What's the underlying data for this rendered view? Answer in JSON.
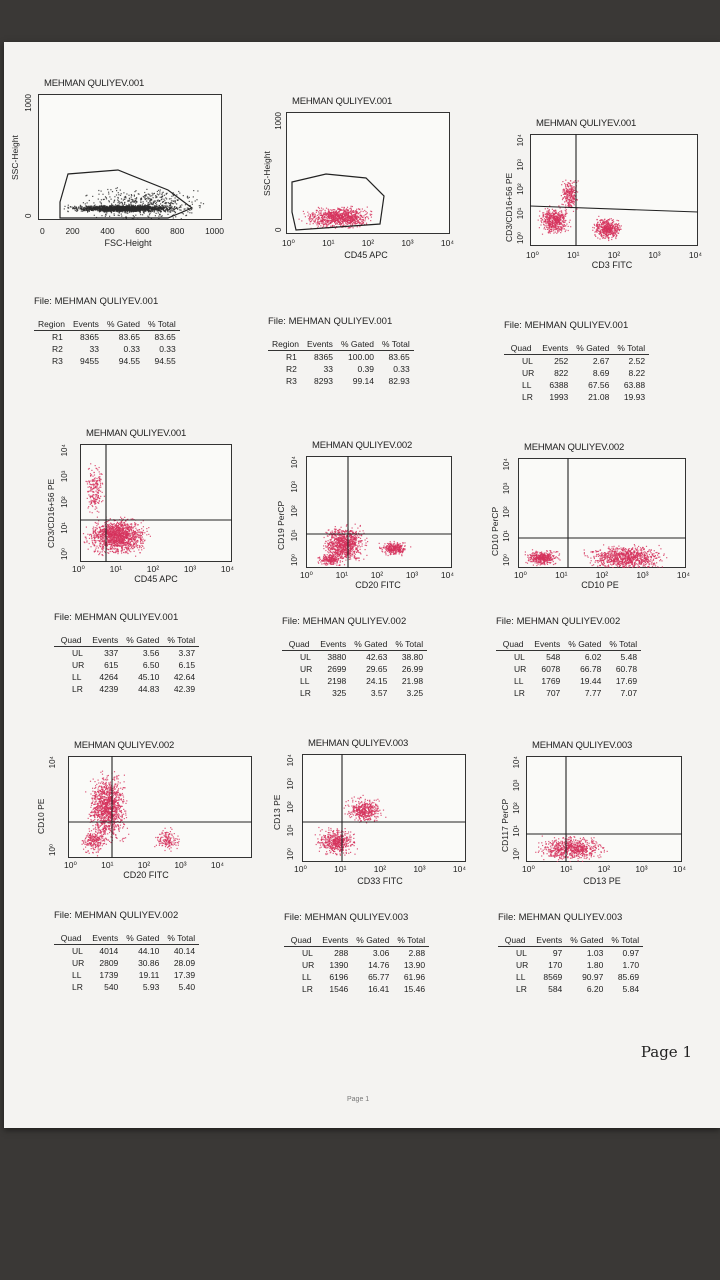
{
  "colors": {
    "dot": "#d6325c",
    "dark": "#2a2a2a",
    "paper": "#f4f3f1"
  },
  "plots": [
    {
      "title": "MEHMAN QULIYEV.001",
      "ylabel": "SSC-Height",
      "xlabel": "FSC-Height",
      "xticks": [
        "0",
        "200",
        "400",
        "600",
        "800",
        "1000"
      ],
      "yticks": [
        "0",
        "",
        "",
        "",
        "",
        "1000"
      ],
      "dots": "dark"
    },
    {
      "title": "MEHMAN QULIYEV.001",
      "ylabel": "SSC-Height",
      "xlabel": "CD45 APC",
      "xticks": [
        "10⁰",
        "10¹",
        "10²",
        "10³",
        "10⁴"
      ],
      "yticks": [
        "0",
        "",
        "",
        "",
        "",
        "1000"
      ],
      "dots": "red"
    },
    {
      "title": "MEHMAN QULIYEV.001",
      "ylabel": "CD3/CD16+56 PE",
      "xlabel": "CD3 FITC",
      "xticks": [
        "10⁰",
        "10¹",
        "10²",
        "10³",
        "10⁴"
      ],
      "yticks": [
        "10⁰",
        "10¹",
        "10²",
        "10³",
        "10⁴"
      ],
      "dots": "red"
    },
    {
      "title": "MEHMAN QULIYEV.001",
      "ylabel": "CD3/CD16+56 PE",
      "xlabel": "CD45 APC",
      "xticks": [
        "10⁰",
        "10¹",
        "10²",
        "10³",
        "10⁴"
      ],
      "yticks": [
        "10⁰",
        "10¹",
        "10²",
        "10³",
        "10⁴"
      ],
      "dots": "red"
    },
    {
      "title": "MEHMAN QULIYEV.002",
      "ylabel": "CD19 PerCP",
      "xlabel": "CD20 FITC",
      "xticks": [
        "10⁰",
        "10¹",
        "10²",
        "10³",
        "10⁴"
      ],
      "yticks": [
        "10⁰",
        "10¹",
        "10²",
        "10³",
        "10⁴"
      ],
      "dots": "red"
    },
    {
      "title": "MEHMAN QULIYEV.002",
      "ylabel": "CD10 PerCP",
      "xlabel": "CD10 PE",
      "xticks": [
        "10⁰",
        "10¹",
        "10²",
        "10³",
        "10⁴"
      ],
      "yticks": [
        "10⁰",
        "10¹",
        "10²",
        "10³",
        "10⁴"
      ],
      "dots": "red"
    },
    {
      "title": "MEHMAN QULIYEV.002",
      "ylabel": "CD10 PE",
      "xlabel": "CD20 FITC",
      "xticks": [
        "10⁰",
        "10¹",
        "10²",
        "10³",
        "10⁴"
      ],
      "yticks": [
        "10⁰",
        "",
        "",
        "",
        "10⁴"
      ],
      "dots": "red"
    },
    {
      "title": "MEHMAN QULIYEV.003",
      "ylabel": "CD13 PE",
      "xlabel": "CD33 FITC",
      "xticks": [
        "10⁰",
        "10¹",
        "10²",
        "10³",
        "10⁴"
      ],
      "yticks": [
        "10⁰",
        "10¹",
        "10²",
        "10³",
        "10⁴"
      ],
      "dots": "red"
    },
    {
      "title": "MEHMAN QULIYEV.003",
      "ylabel": "CD117 PerCP",
      "xlabel": "CD13 PE",
      "xticks": [
        "10⁰",
        "10¹",
        "10²",
        "10³",
        "10⁴"
      ],
      "yticks": [
        "10⁰",
        "10¹",
        "10²",
        "10³",
        "10⁴"
      ],
      "dots": "red"
    }
  ],
  "stats": [
    {
      "file": "File: MEHMAN QULIYEV.001",
      "headers": [
        "Region",
        "Events",
        "% Gated",
        "% Total"
      ],
      "rows": [
        [
          "R1",
          "8365",
          "83.65",
          "83.65"
        ],
        [
          "R2",
          "33",
          "0.33",
          "0.33"
        ],
        [
          "R3",
          "9455",
          "94.55",
          "94.55"
        ]
      ]
    },
    {
      "file": "File: MEHMAN QULIYEV.001",
      "headers": [
        "Region",
        "Events",
        "% Gated",
        "% Total"
      ],
      "rows": [
        [
          "R1",
          "8365",
          "100.00",
          "83.65"
        ],
        [
          "R2",
          "33",
          "0.39",
          "0.33"
        ],
        [
          "R3",
          "8293",
          "99.14",
          "82.93"
        ]
      ]
    },
    {
      "file": "File: MEHMAN QULIYEV.001",
      "headers": [
        "Quad",
        "Events",
        "% Gated",
        "% Total"
      ],
      "rows": [
        [
          "UL",
          "252",
          "2.67",
          "2.52"
        ],
        [
          "UR",
          "822",
          "8.69",
          "8.22"
        ],
        [
          "LL",
          "6388",
          "67.56",
          "63.88"
        ],
        [
          "LR",
          "1993",
          "21.08",
          "19.93"
        ]
      ]
    },
    {
      "file": "File: MEHMAN QULIYEV.001",
      "headers": [
        "Quad",
        "Events",
        "% Gated",
        "% Total"
      ],
      "rows": [
        [
          "UL",
          "337",
          "3.56",
          "3.37"
        ],
        [
          "UR",
          "615",
          "6.50",
          "6.15"
        ],
        [
          "LL",
          "4264",
          "45.10",
          "42.64"
        ],
        [
          "LR",
          "4239",
          "44.83",
          "42.39"
        ]
      ]
    },
    {
      "file": "File: MEHMAN QULIYEV.002",
      "headers": [
        "Quad",
        "Events",
        "% Gated",
        "% Total"
      ],
      "rows": [
        [
          "UL",
          "3880",
          "42.63",
          "38.80"
        ],
        [
          "UR",
          "2699",
          "29.65",
          "26.99"
        ],
        [
          "LL",
          "2198",
          "24.15",
          "21.98"
        ],
        [
          "LR",
          "325",
          "3.57",
          "3.25"
        ]
      ]
    },
    {
      "file": "File: MEHMAN QULIYEV.002",
      "headers": [
        "Quad",
        "Events",
        "% Gated",
        "% Total"
      ],
      "rows": [
        [
          "UL",
          "548",
          "6.02",
          "5.48"
        ],
        [
          "UR",
          "6078",
          "66.78",
          "60.78"
        ],
        [
          "LL",
          "1769",
          "19.44",
          "17.69"
        ],
        [
          "LR",
          "707",
          "7.77",
          "7.07"
        ]
      ]
    },
    {
      "file": "File: MEHMAN QULIYEV.002",
      "headers": [
        "Quad",
        "Events",
        "% Gated",
        "% Total"
      ],
      "rows": [
        [
          "UL",
          "4014",
          "44.10",
          "40.14"
        ],
        [
          "UR",
          "2809",
          "30.86",
          "28.09"
        ],
        [
          "LL",
          "1739",
          "19.11",
          "17.39"
        ],
        [
          "LR",
          "540",
          "5.93",
          "5.40"
        ]
      ]
    },
    {
      "file": "File: MEHMAN QULIYEV.003",
      "headers": [
        "Quad",
        "Events",
        "% Gated",
        "% Total"
      ],
      "rows": [
        [
          "UL",
          "288",
          "3.06",
          "2.88"
        ],
        [
          "UR",
          "1390",
          "14.76",
          "13.90"
        ],
        [
          "LL",
          "6196",
          "65.77",
          "61.96"
        ],
        [
          "LR",
          "1546",
          "16.41",
          "15.46"
        ]
      ]
    },
    {
      "file": "File: MEHMAN QULIYEV.003",
      "headers": [
        "Quad",
        "Events",
        "% Gated",
        "% Total"
      ],
      "rows": [
        [
          "UL",
          "97",
          "1.03",
          "0.97"
        ],
        [
          "UR",
          "170",
          "1.80",
          "1.70"
        ],
        [
          "LL",
          "8569",
          "90.97",
          "85.69"
        ],
        [
          "LR",
          "584",
          "6.20",
          "5.84"
        ]
      ]
    }
  ],
  "footer": {
    "page": "Page 1",
    "faint": "Page 1"
  }
}
